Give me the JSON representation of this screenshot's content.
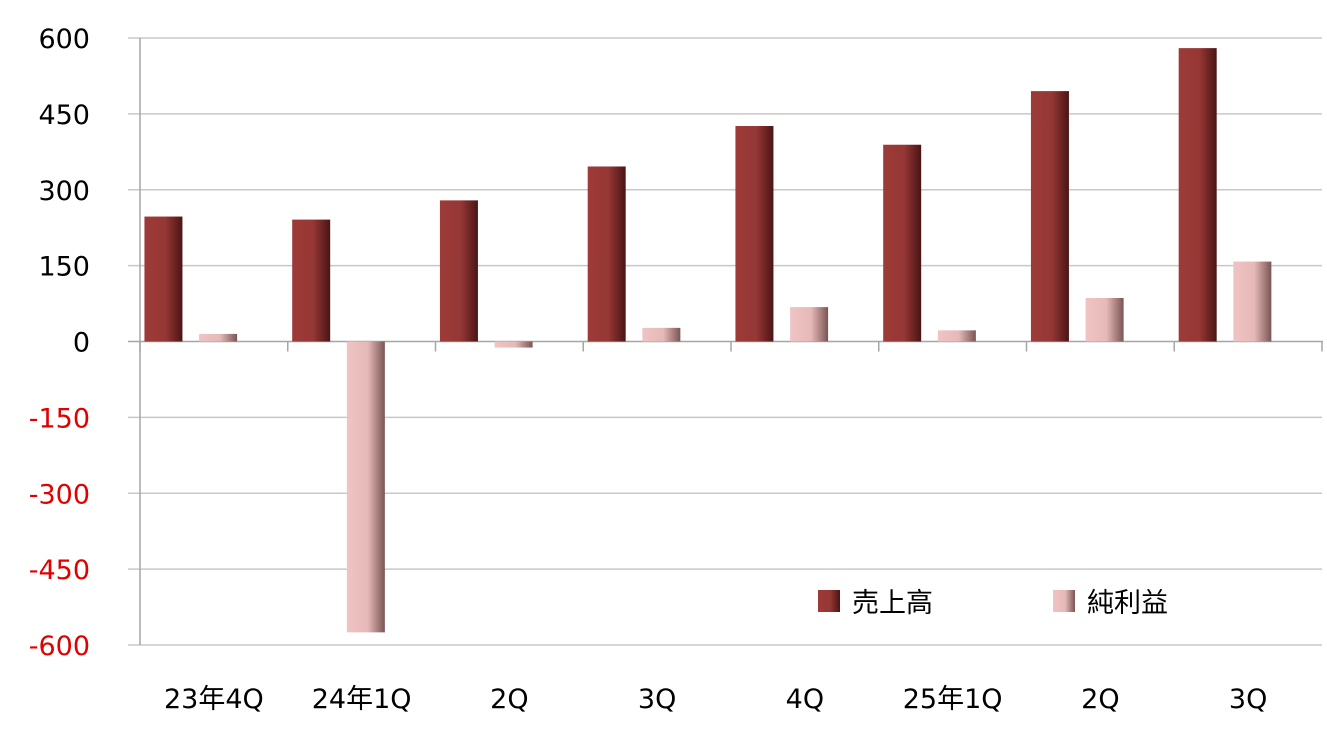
{
  "chart_data": {
    "type": "bar",
    "categories": [
      "23年4Q",
      "24年1Q",
      "2Q",
      "3Q",
      "4Q",
      "25年1Q",
      "2Q",
      "3Q"
    ],
    "series": [
      {
        "name": "売上高",
        "values": [
          247,
          241,
          279,
          346,
          426,
          389,
          495,
          580
        ],
        "color": "#953735"
      },
      {
        "name": "純利益",
        "values": [
          15,
          -575,
          -12,
          27,
          68,
          22,
          86,
          158
        ],
        "color": "#e6b9b8"
      }
    ],
    "ylim": [
      -600,
      600
    ],
    "yticks": [
      600,
      450,
      300,
      150,
      0,
      -150,
      -300,
      -450,
      -600
    ],
    "negative_tick_color": "#e00000",
    "grid": true,
    "legend_position": "bottom-right"
  }
}
